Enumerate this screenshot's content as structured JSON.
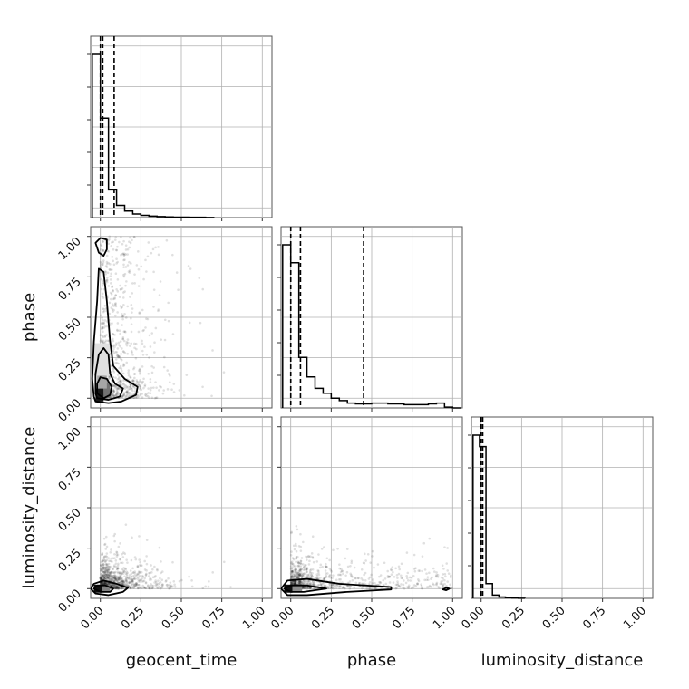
{
  "chart_data": {
    "type": "corner",
    "parameters": [
      "geocent_time",
      "phase",
      "luminosity_distance"
    ],
    "tick_labels": [
      "0.00",
      "0.25",
      "0.50",
      "0.75",
      "1.00"
    ],
    "axis_range": [
      -0.06,
      1.06
    ],
    "grid": true,
    "colors": {
      "line": "#000000",
      "grid": "#b0b0b0",
      "points": "#000000"
    },
    "diagonals": [
      {
        "parameter": "geocent_time",
        "quantile_lines": [
          0.0,
          0.015,
          0.085
        ],
        "bin_width": 0.05,
        "histogram": [
          {
            "x0": -0.05,
            "x1": 0.0,
            "v": 1.0
          },
          {
            "x0": 0.0,
            "x1": 0.05,
            "v": 0.61
          },
          {
            "x0": 0.05,
            "x1": 0.1,
            "v": 0.17
          },
          {
            "x0": 0.1,
            "x1": 0.15,
            "v": 0.075
          },
          {
            "x0": 0.15,
            "x1": 0.2,
            "v": 0.04
          },
          {
            "x0": 0.2,
            "x1": 0.25,
            "v": 0.022
          },
          {
            "x0": 0.25,
            "x1": 0.3,
            "v": 0.014
          },
          {
            "x0": 0.3,
            "x1": 0.35,
            "v": 0.009
          },
          {
            "x0": 0.35,
            "x1": 0.4,
            "v": 0.006
          },
          {
            "x0": 0.4,
            "x1": 0.45,
            "v": 0.004
          },
          {
            "x0": 0.45,
            "x1": 0.5,
            "v": 0.003
          },
          {
            "x0": 0.5,
            "x1": 0.55,
            "v": 0.003
          },
          {
            "x0": 0.55,
            "x1": 0.6,
            "v": 0.002
          },
          {
            "x0": 0.6,
            "x1": 0.65,
            "v": 0.002
          },
          {
            "x0": 0.65,
            "x1": 0.7,
            "v": 0.001
          }
        ]
      },
      {
        "parameter": "phase",
        "quantile_lines": [
          0.0,
          0.06,
          0.45
        ],
        "bin_width": 0.05,
        "histogram": [
          {
            "x0": -0.05,
            "x1": 0.0,
            "v": 1.0
          },
          {
            "x0": 0.0,
            "x1": 0.05,
            "v": 0.89
          },
          {
            "x0": 0.05,
            "x1": 0.1,
            "v": 0.31
          },
          {
            "x0": 0.1,
            "x1": 0.15,
            "v": 0.19
          },
          {
            "x0": 0.15,
            "x1": 0.2,
            "v": 0.12
          },
          {
            "x0": 0.2,
            "x1": 0.25,
            "v": 0.09
          },
          {
            "x0": 0.25,
            "x1": 0.3,
            "v": 0.06
          },
          {
            "x0": 0.3,
            "x1": 0.35,
            "v": 0.045
          },
          {
            "x0": 0.35,
            "x1": 0.4,
            "v": 0.03
          },
          {
            "x0": 0.4,
            "x1": 0.45,
            "v": 0.025
          },
          {
            "x0": 0.45,
            "x1": 0.5,
            "v": 0.025
          },
          {
            "x0": 0.5,
            "x1": 0.55,
            "v": 0.03
          },
          {
            "x0": 0.55,
            "x1": 0.6,
            "v": 0.03
          },
          {
            "x0": 0.6,
            "x1": 0.65,
            "v": 0.025
          },
          {
            "x0": 0.65,
            "x1": 0.7,
            "v": 0.025
          },
          {
            "x0": 0.7,
            "x1": 0.75,
            "v": 0.02
          },
          {
            "x0": 0.75,
            "x1": 0.8,
            "v": 0.02
          },
          {
            "x0": 0.8,
            "x1": 0.85,
            "v": 0.02
          },
          {
            "x0": 0.85,
            "x1": 0.9,
            "v": 0.025
          },
          {
            "x0": 0.9,
            "x1": 0.95,
            "v": 0.03
          },
          {
            "x0": 0.95,
            "x1": 1.0,
            "v": 0.005
          },
          {
            "x0": 1.0,
            "x1": 1.05,
            "v": 0.0
          }
        ]
      },
      {
        "parameter": "luminosity_distance",
        "quantile_lines": [
          -0.005,
          0.0,
          0.01
        ],
        "bin_width": 0.04,
        "histogram": [
          {
            "x0": -0.05,
            "x1": -0.01,
            "v": 1.0
          },
          {
            "x0": -0.01,
            "x1": 0.03,
            "v": 0.93
          },
          {
            "x0": 0.03,
            "x1": 0.07,
            "v": 0.09
          },
          {
            "x0": 0.07,
            "x1": 0.11,
            "v": 0.02
          },
          {
            "x0": 0.11,
            "x1": 0.15,
            "v": 0.008
          },
          {
            "x0": 0.15,
            "x1": 0.19,
            "v": 0.004
          },
          {
            "x0": 0.19,
            "x1": 0.23,
            "v": 0.002
          },
          {
            "x0": 0.23,
            "x1": 0.27,
            "v": 0.001
          }
        ]
      }
    ],
    "pairs": [
      {
        "x_param": "geocent_time",
        "y_param": "phase",
        "contours": [
          [
            [
              -0.04,
              0.01
            ],
            [
              -0.03,
              -0.02
            ],
            [
              0.05,
              -0.03
            ],
            [
              0.13,
              -0.02
            ],
            [
              0.22,
              0.02
            ],
            [
              0.23,
              0.07
            ],
            [
              0.15,
              0.12
            ],
            [
              0.08,
              0.2
            ],
            [
              0.06,
              0.35
            ],
            [
              0.04,
              0.6
            ],
            [
              0.02,
              0.78
            ],
            [
              -0.01,
              0.8
            ],
            [
              -0.02,
              0.6
            ],
            [
              -0.04,
              0.35
            ],
            [
              -0.05,
              0.12
            ],
            [
              -0.04,
              0.01
            ]
          ],
          [
            [
              -0.03,
              0.03
            ],
            [
              -0.02,
              0.0
            ],
            [
              0.05,
              -0.01
            ],
            [
              0.12,
              0.01
            ],
            [
              0.14,
              0.06
            ],
            [
              0.09,
              0.09
            ],
            [
              0.06,
              0.15
            ],
            [
              0.05,
              0.27
            ],
            [
              0.02,
              0.31
            ],
            [
              -0.01,
              0.27
            ],
            [
              -0.03,
              0.15
            ],
            [
              -0.03,
              0.03
            ]
          ],
          [
            [
              -0.02,
              0.03
            ],
            [
              0.02,
              0.0
            ],
            [
              0.06,
              0.02
            ],
            [
              0.07,
              0.07
            ],
            [
              0.04,
              0.12
            ],
            [
              0.0,
              0.13
            ],
            [
              -0.02,
              0.09
            ],
            [
              -0.02,
              0.03
            ]
          ],
          [
            [
              -0.03,
              0.96
            ],
            [
              0.0,
              0.99
            ],
            [
              0.04,
              0.98
            ],
            [
              0.04,
              0.92
            ],
            [
              0.02,
              0.88
            ],
            [
              -0.01,
              0.9
            ],
            [
              -0.03,
              0.96
            ]
          ]
        ],
        "density_blocks": [
          {
            "x": -0.03,
            "y": -0.02,
            "w": 0.05,
            "h": 0.08,
            "shade": 0.9
          },
          {
            "x": 0.02,
            "y": 0.0,
            "w": 0.04,
            "h": 0.1,
            "shade": 0.55
          },
          {
            "x": -0.02,
            "y": 0.06,
            "w": 0.06,
            "h": 0.08,
            "shade": 0.35
          },
          {
            "x": -0.04,
            "y": 0.14,
            "w": 0.1,
            "h": 0.2,
            "shade": 0.12
          }
        ],
        "scatter": {
          "n": 900,
          "x_decay": 0.12,
          "x_max": 0.98,
          "y_mode": "uniform",
          "y_min": 0.0,
          "y_max": 1.0
        }
      },
      {
        "x_param": "geocent_time",
        "y_param": "luminosity_distance",
        "contours": [
          [
            [
              -0.06,
              0.0
            ],
            [
              -0.03,
              -0.03
            ],
            [
              0.05,
              -0.04
            ],
            [
              0.14,
              -0.02
            ],
            [
              0.17,
              0.005
            ],
            [
              0.1,
              0.03
            ],
            [
              0.02,
              0.05
            ],
            [
              -0.04,
              0.03
            ],
            [
              -0.06,
              0.0
            ]
          ],
          [
            [
              -0.04,
              0.0
            ],
            [
              0.0,
              -0.02
            ],
            [
              0.06,
              -0.02
            ],
            [
              0.08,
              0.0
            ],
            [
              0.03,
              0.02
            ],
            [
              -0.02,
              0.02
            ],
            [
              -0.04,
              0.0
            ]
          ]
        ],
        "density_blocks": [
          {
            "x": -0.04,
            "y": -0.025,
            "w": 0.05,
            "h": 0.05,
            "shade": 0.95
          },
          {
            "x": 0.01,
            "y": -0.02,
            "w": 0.05,
            "h": 0.04,
            "shade": 0.5
          }
        ],
        "scatter": {
          "n": 900,
          "x_decay": 0.12,
          "x_max": 0.98,
          "y_mode": "decay",
          "y_decay": 0.06,
          "y_max": 0.5
        }
      },
      {
        "x_param": "phase",
        "y_param": "luminosity_distance",
        "contours": [
          [
            [
              -0.06,
              0.0
            ],
            [
              -0.02,
              -0.04
            ],
            [
              0.1,
              -0.04
            ],
            [
              0.35,
              -0.02
            ],
            [
              0.62,
              -0.005
            ],
            [
              0.62,
              0.01
            ],
            [
              0.3,
              0.03
            ],
            [
              0.1,
              0.06
            ],
            [
              -0.02,
              0.05
            ],
            [
              -0.06,
              0.0
            ]
          ],
          [
            [
              -0.04,
              0.0
            ],
            [
              0.0,
              -0.02
            ],
            [
              0.08,
              -0.02
            ],
            [
              0.22,
              0.0
            ],
            [
              0.1,
              0.02
            ],
            [
              0.0,
              0.02
            ],
            [
              -0.04,
              0.0
            ]
          ],
          [
            [
              0.94,
              -0.005
            ],
            [
              0.96,
              -0.01
            ],
            [
              0.98,
              0.0
            ],
            [
              0.96,
              0.005
            ],
            [
              0.94,
              -0.005
            ]
          ]
        ],
        "density_blocks": [
          {
            "x": -0.04,
            "y": -0.025,
            "w": 0.05,
            "h": 0.05,
            "shade": 0.95
          },
          {
            "x": 0.01,
            "y": -0.02,
            "w": 0.06,
            "h": 0.04,
            "shade": 0.45
          }
        ],
        "scatter": {
          "n": 900,
          "x_mode": "phase",
          "x_max": 1.0,
          "y_mode": "decay",
          "y_decay": 0.06,
          "y_max": 0.5
        }
      }
    ]
  }
}
